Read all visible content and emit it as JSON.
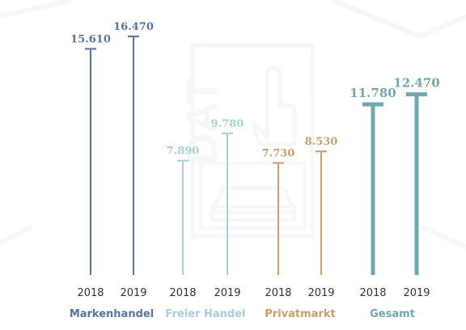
{
  "chart_data": {
    "type": "bar",
    "title": "",
    "xlabel": "",
    "ylabel": "",
    "groups": [
      {
        "name": "Markenhandel",
        "color": "#5a7596",
        "style": "thin",
        "points": [
          {
            "year": "2018",
            "value": 15610,
            "label": "15.610"
          },
          {
            "year": "2019",
            "value": 16470,
            "label": "16.470"
          }
        ]
      },
      {
        "name": "Freier Handel",
        "color": "#a7cfd8",
        "style": "thin",
        "points": [
          {
            "year": "2018",
            "value": 7890,
            "label": "7.890"
          },
          {
            "year": "2019",
            "value": 9780,
            "label": "9.780"
          }
        ]
      },
      {
        "name": "Privatmarkt",
        "color": "#c9a06b",
        "style": "thin",
        "points": [
          {
            "year": "2018",
            "value": 7730,
            "label": "7.730"
          },
          {
            "year": "2019",
            "value": 8530,
            "label": "8.530"
          }
        ]
      },
      {
        "name": "Gesamt",
        "color": "#72a7ad",
        "style": "thick",
        "points": [
          {
            "year": "2018",
            "value": 11780,
            "label": "11.780"
          },
          {
            "year": "2019",
            "value": 12470,
            "label": "12.470"
          }
        ]
      }
    ],
    "grid": false,
    "legend": "none"
  },
  "watermark": {
    "text": "DAT"
  }
}
